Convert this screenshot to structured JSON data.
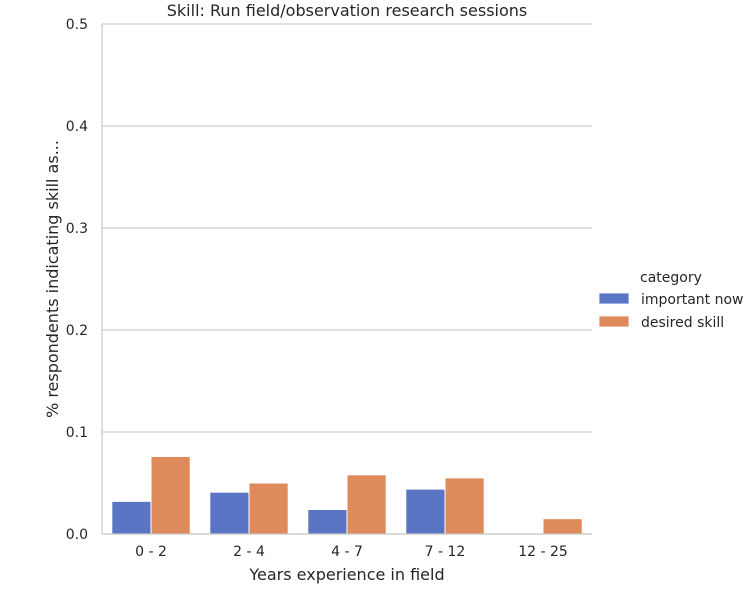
{
  "chart_data": {
    "type": "bar",
    "title": "Skill: Run field/observation research sessions",
    "xlabel": "Years experience in field",
    "ylabel": "% respondents indicating skill as...",
    "categories": [
      "0 - 2",
      "2 - 4",
      "4 - 7",
      "7 - 12",
      "12 - 25"
    ],
    "series": [
      {
        "name": "important now",
        "color": "#5975c4",
        "values": [
          0.032,
          0.041,
          0.024,
          0.044,
          0.0
        ]
      },
      {
        "name": "desired skill",
        "color": "#de8a5a",
        "values": [
          0.076,
          0.05,
          0.058,
          0.055,
          0.015
        ]
      }
    ],
    "ylim": [
      0,
      0.5
    ],
    "yticks": [
      0.0,
      0.1,
      0.2,
      0.3,
      0.4,
      0.5
    ],
    "ytick_labels": [
      "0.0",
      "0.1",
      "0.2",
      "0.3",
      "0.4",
      "0.5"
    ],
    "grid": "horizontal",
    "legend": {
      "title": "category",
      "placement": "right"
    },
    "grid_color": "#cccccc"
  }
}
